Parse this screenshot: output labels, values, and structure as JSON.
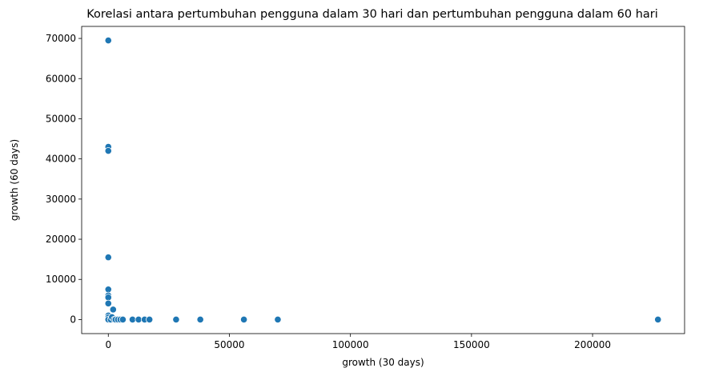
{
  "chart_data": {
    "type": "scatter",
    "title": "Korelasi antara pertumbuhan pengguna dalam 30 hari dan pertumbuhan pengguna dalam 60 hari",
    "xlabel": "growth (30 days)",
    "ylabel": "growth (60 days)",
    "xlim": [
      -11000,
      238000
    ],
    "ylim": [
      -3500,
      73000
    ],
    "xticks": [
      0,
      50000,
      100000,
      150000,
      200000
    ],
    "yticks": [
      0,
      10000,
      20000,
      30000,
      40000,
      50000,
      60000,
      70000
    ],
    "grid": false,
    "point_color": "#1f77b4",
    "points": [
      [
        0,
        69500
      ],
      [
        0,
        43000
      ],
      [
        0,
        42000
      ],
      [
        0,
        15500
      ],
      [
        0,
        7500
      ],
      [
        0,
        6000
      ],
      [
        0,
        5500
      ],
      [
        0,
        4000
      ],
      [
        0,
        1000
      ],
      [
        0,
        500
      ],
      [
        0,
        0
      ],
      [
        1000,
        0
      ],
      [
        1500,
        600
      ],
      [
        2000,
        2500
      ],
      [
        2500,
        0
      ],
      [
        3000,
        0
      ],
      [
        4000,
        0
      ],
      [
        5000,
        0
      ],
      [
        6000,
        0
      ],
      [
        10000,
        0
      ],
      [
        12500,
        0
      ],
      [
        15000,
        0
      ],
      [
        17000,
        0
      ],
      [
        28000,
        0
      ],
      [
        38000,
        0
      ],
      [
        56000,
        0
      ],
      [
        70000,
        0
      ],
      [
        227000,
        0
      ]
    ]
  }
}
